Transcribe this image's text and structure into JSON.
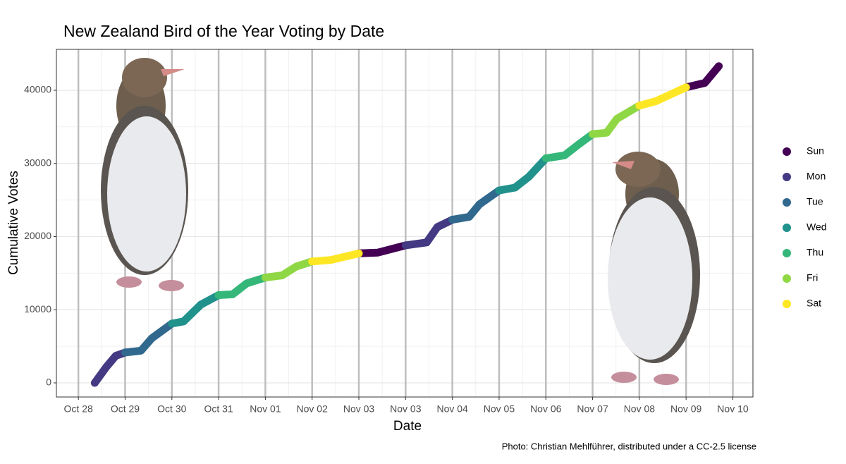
{
  "chart_data": {
    "type": "line",
    "title": "New Zealand Bird of the Year Voting by Date",
    "xlabel": "Date",
    "ylabel": "Cumulative Votes",
    "caption": "Photo: Christian Mehlführer, distributed under a CC-2.5 license",
    "xlim": [
      -0.47,
      14.43
    ],
    "ylim": [
      -1930,
      45590
    ],
    "xticks": [
      {
        "value": 0,
        "label": "Oct 28"
      },
      {
        "value": 1,
        "label": "Oct 29"
      },
      {
        "value": 2,
        "label": "Oct 30"
      },
      {
        "value": 3,
        "label": "Oct 31"
      },
      {
        "value": 4,
        "label": "Nov 01"
      },
      {
        "value": 5,
        "label": "Nov 02"
      },
      {
        "value": 6,
        "label": "Nov 03"
      },
      {
        "value": 7,
        "label": "Nov 03"
      },
      {
        "value": 8,
        "label": "Nov 04"
      },
      {
        "value": 9,
        "label": "Nov 05"
      },
      {
        "value": 10,
        "label": "Nov 06"
      },
      {
        "value": 11,
        "label": "Nov 07"
      },
      {
        "value": 12,
        "label": "Nov 08"
      },
      {
        "value": 13,
        "label": "Nov 09"
      },
      {
        "value": 14,
        "label": "Nov 10"
      }
    ],
    "yticks": [
      0,
      10000,
      20000,
      30000,
      40000
    ],
    "grid": true,
    "series": [
      {
        "name": "Sun",
        "color": "#440154",
        "x": [
          6,
          6.4,
          7,
          null,
          13,
          13.4,
          13.7
        ],
        "values": [
          17700,
          17800,
          18800,
          null,
          40400,
          41000,
          43300
        ]
      },
      {
        "name": "Mon",
        "color": "#443983",
        "x": [
          0.35,
          0.6,
          0.8,
          1,
          null,
          7,
          7.45,
          7.68,
          8
        ],
        "values": [
          0,
          2200,
          3700,
          4150,
          null,
          18800,
          19200,
          21300,
          22300
        ]
      },
      {
        "name": "Tue",
        "color": "#31688e",
        "x": [
          1,
          1.34,
          1.57,
          2,
          null,
          8,
          8.36,
          8.58,
          9
        ],
        "values": [
          4150,
          4400,
          6100,
          8100,
          null,
          22300,
          22700,
          24400,
          26300
        ]
      },
      {
        "name": "Wed",
        "color": "#21918c",
        "x": [
          2,
          2.25,
          2.62,
          3,
          null,
          9,
          9.34,
          9.64,
          10
        ],
        "values": [
          8100,
          8400,
          10700,
          12000,
          null,
          26300,
          26700,
          28200,
          30700
        ]
      },
      {
        "name": "Thu",
        "color": "#35b779",
        "x": [
          3,
          3.3,
          3.6,
          4,
          null,
          10,
          10.4,
          10.7,
          11
        ],
        "values": [
          12000,
          12100,
          13600,
          14400,
          null,
          30700,
          31100,
          32600,
          34000
        ]
      },
      {
        "name": "Fri",
        "color": "#8fd744",
        "x": [
          4,
          4.36,
          4.66,
          5,
          null,
          11,
          11.3,
          11.52,
          12
        ],
        "values": [
          14400,
          14700,
          15900,
          16600,
          null,
          34000,
          34200,
          36100,
          37900
        ]
      },
      {
        "name": "Sat",
        "color": "#fde725",
        "x": [
          5,
          5.4,
          6,
          null,
          12,
          12.35,
          13
        ],
        "values": [
          16600,
          16800,
          17700,
          null,
          37900,
          38500,
          40400
        ]
      }
    ]
  }
}
